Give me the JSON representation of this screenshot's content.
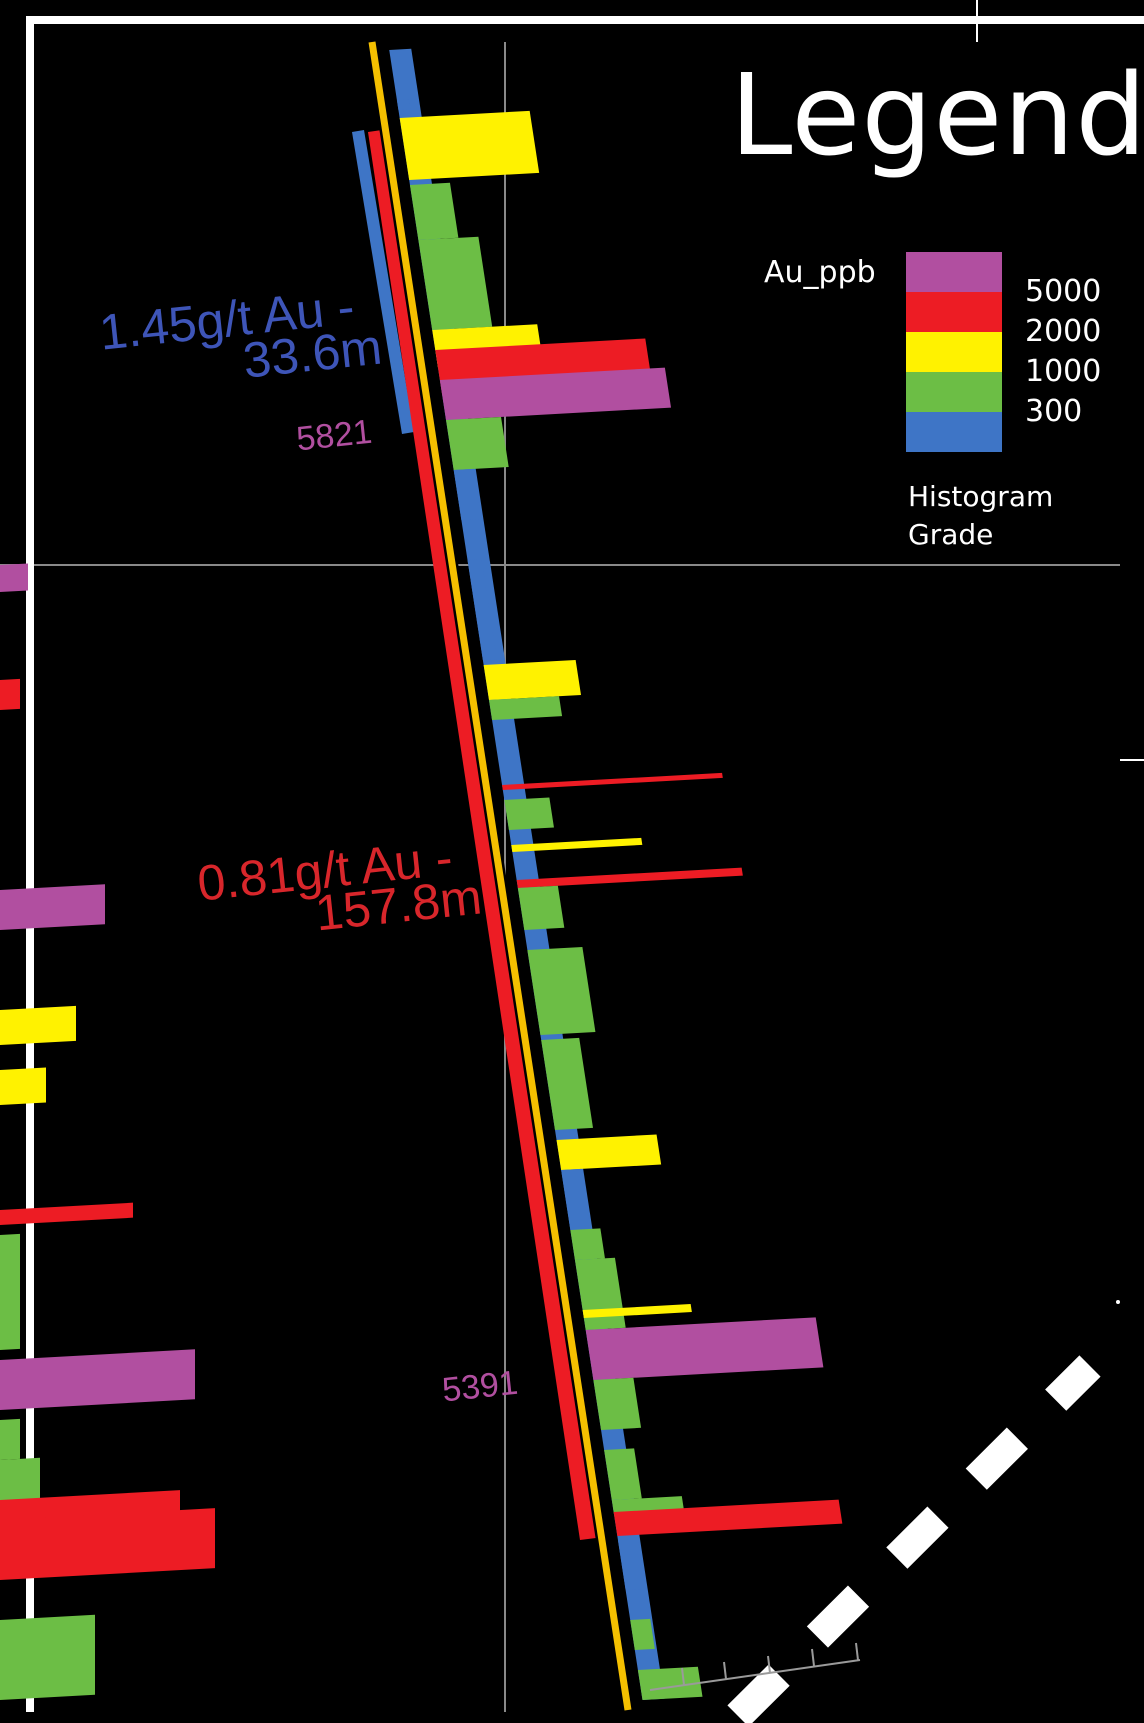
{
  "legend": {
    "title": "Legend",
    "field": "Au_ppb",
    "bins": [
      {
        "label": "5000",
        "color": "#b14fa0"
      },
      {
        "label": "2000",
        "color": "#ed1c24"
      },
      {
        "label": "1000",
        "color": "#fff200"
      },
      {
        "label": "300",
        "color": "#6cbe45"
      },
      {
        "label": "",
        "color": "#3e75c6"
      }
    ],
    "caption_line1": "Histogram",
    "caption_line2": "Grade"
  },
  "intercepts": {
    "upper_grade": "1.45g/t Au -",
    "upper_length": "33.6m",
    "lower_grade": "0.81g/t Au -",
    "lower_length": "157.8m"
  },
  "holes": {
    "label_upper": "5821",
    "label_lower": "5391"
  },
  "colors": {
    "magenta": "#b14fa0",
    "red": "#ed1c24",
    "yellow": "#fff200",
    "green": "#6cbe45",
    "blue": "#3e75c6",
    "background": "#000000"
  }
}
